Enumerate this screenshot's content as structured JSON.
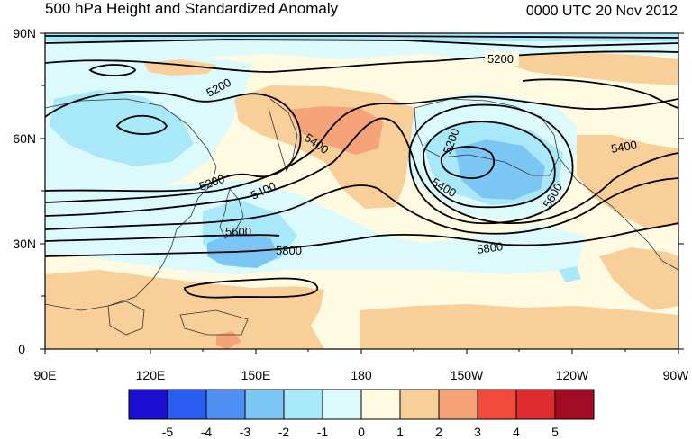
{
  "title": "500 hPa Height and Standardized Anomaly",
  "valid_time": "0000 UTC 20 Nov 2012",
  "lat_ticks": [
    "90N",
    "60N",
    "30N",
    "0"
  ],
  "lon_ticks": [
    "90E",
    "120E",
    "150E",
    "180",
    "150W",
    "120W",
    "90W"
  ],
  "contour_labels": [
    "5200",
    "5200",
    "5200",
    "5200",
    "5400",
    "5400",
    "5400",
    "5400",
    "5600",
    "5600",
    "5800",
    "5800"
  ],
  "colorbar": {
    "labels": [
      "-5",
      "-4",
      "-3",
      "-2",
      "-1",
      "0",
      "1",
      "2",
      "3",
      "4",
      "5"
    ],
    "colors": [
      "#1a0fd0",
      "#2a5cf0",
      "#4f8ef2",
      "#7cc6f4",
      "#a8e8f8",
      "#dcfafc",
      "#fefbe2",
      "#f8cf98",
      "#f6a37a",
      "#f34a3e",
      "#df2c2e",
      "#a30b24"
    ]
  },
  "anomaly_colors": {
    "neg1": "#dcfafc",
    "neg2": "#a8e8f8",
    "neg3": "#7cc6f4",
    "pos1": "#fefbe2",
    "pos2": "#f8cf98",
    "pos3": "#f6a37a"
  }
}
